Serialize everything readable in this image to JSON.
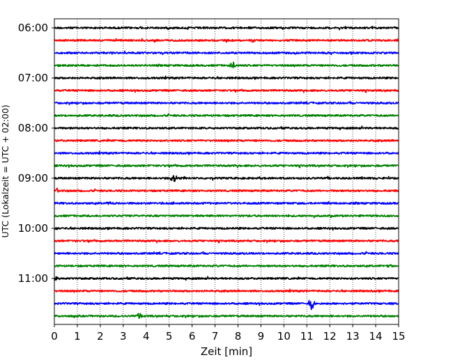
{
  "chart_data": {
    "type": "line",
    "title": "",
    "xlabel": "Zeit  [min]",
    "ylabel": "UTC (Lokalzeit = UTC + 02:00)",
    "xlim": [
      0,
      15
    ],
    "x_ticks": [
      "0",
      "1",
      "2",
      "3",
      "4",
      "5",
      "6",
      "7",
      "8",
      "9",
      "10",
      "11",
      "12",
      "13",
      "14",
      "15"
    ],
    "y_tick_labels": [
      "06:00",
      "07:00",
      "08:00",
      "09:00",
      "10:00",
      "11:00"
    ],
    "grid": "vertical dotted",
    "trace_interval_min": 15,
    "trace_colors": [
      "#000000",
      "#ff0000",
      "#0000ff",
      "#008000"
    ],
    "rows": [
      {
        "utc": "06:00",
        "color": "#000000",
        "events": []
      },
      {
        "utc": "06:15",
        "color": "#ff0000",
        "events": [
          {
            "t": 14.9,
            "amp": 4
          }
        ]
      },
      {
        "utc": "06:30",
        "color": "#0000ff",
        "events": []
      },
      {
        "utc": "06:45",
        "color": "#008000",
        "events": [
          {
            "t": 7.8,
            "amp": 6
          }
        ]
      },
      {
        "utc": "07:00",
        "color": "#000000",
        "events": []
      },
      {
        "utc": "07:15",
        "color": "#ff0000",
        "events": []
      },
      {
        "utc": "07:30",
        "color": "#0000ff",
        "events": []
      },
      {
        "utc": "07:45",
        "color": "#008000",
        "events": []
      },
      {
        "utc": "08:00",
        "color": "#000000",
        "events": []
      },
      {
        "utc": "08:15",
        "color": "#ff0000",
        "events": []
      },
      {
        "utc": "08:30",
        "color": "#0000ff",
        "events": []
      },
      {
        "utc": "08:45",
        "color": "#008000",
        "events": []
      },
      {
        "utc": "09:00",
        "color": "#000000",
        "events": [
          {
            "t": 5.2,
            "amp": 7
          }
        ]
      },
      {
        "utc": "09:15",
        "color": "#ff0000",
        "events": [
          {
            "t": 0.1,
            "amp": 3
          }
        ]
      },
      {
        "utc": "09:30",
        "color": "#0000ff",
        "events": [
          {
            "t": 2.4,
            "amp": 3
          }
        ]
      },
      {
        "utc": "09:45",
        "color": "#008000",
        "events": []
      },
      {
        "utc": "10:00",
        "color": "#000000",
        "events": [
          {
            "t": 0.1,
            "amp": 3
          }
        ]
      },
      {
        "utc": "10:15",
        "color": "#ff0000",
        "events": []
      },
      {
        "utc": "10:30",
        "color": "#0000ff",
        "events": []
      },
      {
        "utc": "10:45",
        "color": "#008000",
        "events": [
          {
            "t": 14.6,
            "amp": 3
          }
        ]
      },
      {
        "utc": "11:00",
        "color": "#000000",
        "events": [
          {
            "t": 0.1,
            "amp": 4
          }
        ]
      },
      {
        "utc": "11:15",
        "color": "#ff0000",
        "events": []
      },
      {
        "utc": "11:30",
        "color": "#0000ff",
        "events": [
          {
            "t": 11.2,
            "amp": 10
          }
        ]
      },
      {
        "utc": "11:45",
        "color": "#008000",
        "events": [
          {
            "t": 3.7,
            "amp": 5
          }
        ]
      }
    ]
  }
}
